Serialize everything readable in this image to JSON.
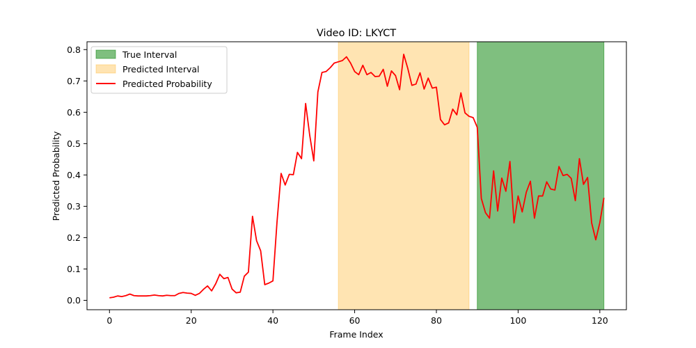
{
  "chart_data": {
    "type": "line",
    "title": "Video ID: LKYCT",
    "xlabel": "Frame Index",
    "ylabel": "Predicted Probability",
    "xlim": [
      -5.5,
      126.5
    ],
    "ylim": [
      -0.03,
      0.825
    ],
    "xticks": [
      0,
      20,
      40,
      60,
      80,
      100,
      120
    ],
    "yticks": [
      0.0,
      0.1,
      0.2,
      0.3,
      0.4,
      0.5,
      0.6,
      0.7,
      0.8
    ],
    "xtick_labels": [
      "0",
      "20",
      "40",
      "60",
      "80",
      "100",
      "120"
    ],
    "ytick_labels": [
      "0.0",
      "0.1",
      "0.2",
      "0.3",
      "0.4",
      "0.5",
      "0.6",
      "0.7",
      "0.8"
    ],
    "grid": false,
    "legend_position": "top-left",
    "colors": {
      "true_interval": "#008000",
      "predicted_interval": "#ffa500",
      "line": "#ff0000"
    },
    "legend": {
      "true_interval": "True Interval",
      "predicted_interval": "Predicted Interval",
      "line": "Predicted Probability"
    },
    "true_interval": [
      90,
      121
    ],
    "predicted_interval": [
      56,
      88
    ],
    "series": [
      {
        "name": "Predicted Probability",
        "x": [
          0,
          1,
          2,
          3,
          4,
          5,
          6,
          7,
          8,
          9,
          10,
          11,
          12,
          13,
          14,
          15,
          16,
          17,
          18,
          19,
          20,
          21,
          22,
          23,
          24,
          25,
          26,
          27,
          28,
          29,
          30,
          31,
          32,
          33,
          34,
          35,
          36,
          37,
          38,
          39,
          40,
          41,
          42,
          43,
          44,
          45,
          46,
          47,
          48,
          49,
          50,
          51,
          52,
          53,
          54,
          55,
          56,
          57,
          58,
          59,
          60,
          61,
          62,
          63,
          64,
          65,
          66,
          67,
          68,
          69,
          70,
          71,
          72,
          73,
          74,
          75,
          76,
          77,
          78,
          79,
          80,
          81,
          82,
          83,
          84,
          85,
          86,
          87,
          88,
          89,
          90,
          91,
          92,
          93,
          94,
          95,
          96,
          97,
          98,
          99,
          100,
          101,
          102,
          103,
          104,
          105,
          106,
          107,
          108,
          109,
          110,
          111,
          112,
          113,
          114,
          115,
          116,
          117,
          118,
          119,
          120,
          121
        ],
        "values": [
          0.008,
          0.01,
          0.014,
          0.012,
          0.015,
          0.02,
          0.015,
          0.014,
          0.014,
          0.014,
          0.015,
          0.017,
          0.015,
          0.014,
          0.016,
          0.015,
          0.015,
          0.022,
          0.025,
          0.023,
          0.022,
          0.016,
          0.022,
          0.035,
          0.046,
          0.03,
          0.053,
          0.083,
          0.069,
          0.073,
          0.036,
          0.024,
          0.026,
          0.077,
          0.09,
          0.268,
          0.19,
          0.158,
          0.05,
          0.055,
          0.062,
          0.25,
          0.405,
          0.368,
          0.402,
          0.401,
          0.472,
          0.452,
          0.628,
          0.527,
          0.445,
          0.665,
          0.727,
          0.73,
          0.742,
          0.757,
          0.761,
          0.765,
          0.777,
          0.757,
          0.73,
          0.72,
          0.75,
          0.72,
          0.727,
          0.714,
          0.715,
          0.737,
          0.683,
          0.732,
          0.717,
          0.672,
          0.785,
          0.74,
          0.686,
          0.69,
          0.726,
          0.674,
          0.709,
          0.677,
          0.68,
          0.577,
          0.56,
          0.566,
          0.61,
          0.592,
          0.662,
          0.598,
          0.587,
          0.583,
          0.552,
          0.325,
          0.28,
          0.262,
          0.413,
          0.285,
          0.39,
          0.348,
          0.443,
          0.247,
          0.333,
          0.282,
          0.345,
          0.38,
          0.262,
          0.333,
          0.333,
          0.378,
          0.355,
          0.352,
          0.427,
          0.398,
          0.402,
          0.389,
          0.318,
          0.452,
          0.37,
          0.392,
          0.247,
          0.193,
          0.248,
          0.327
        ]
      }
    ]
  }
}
